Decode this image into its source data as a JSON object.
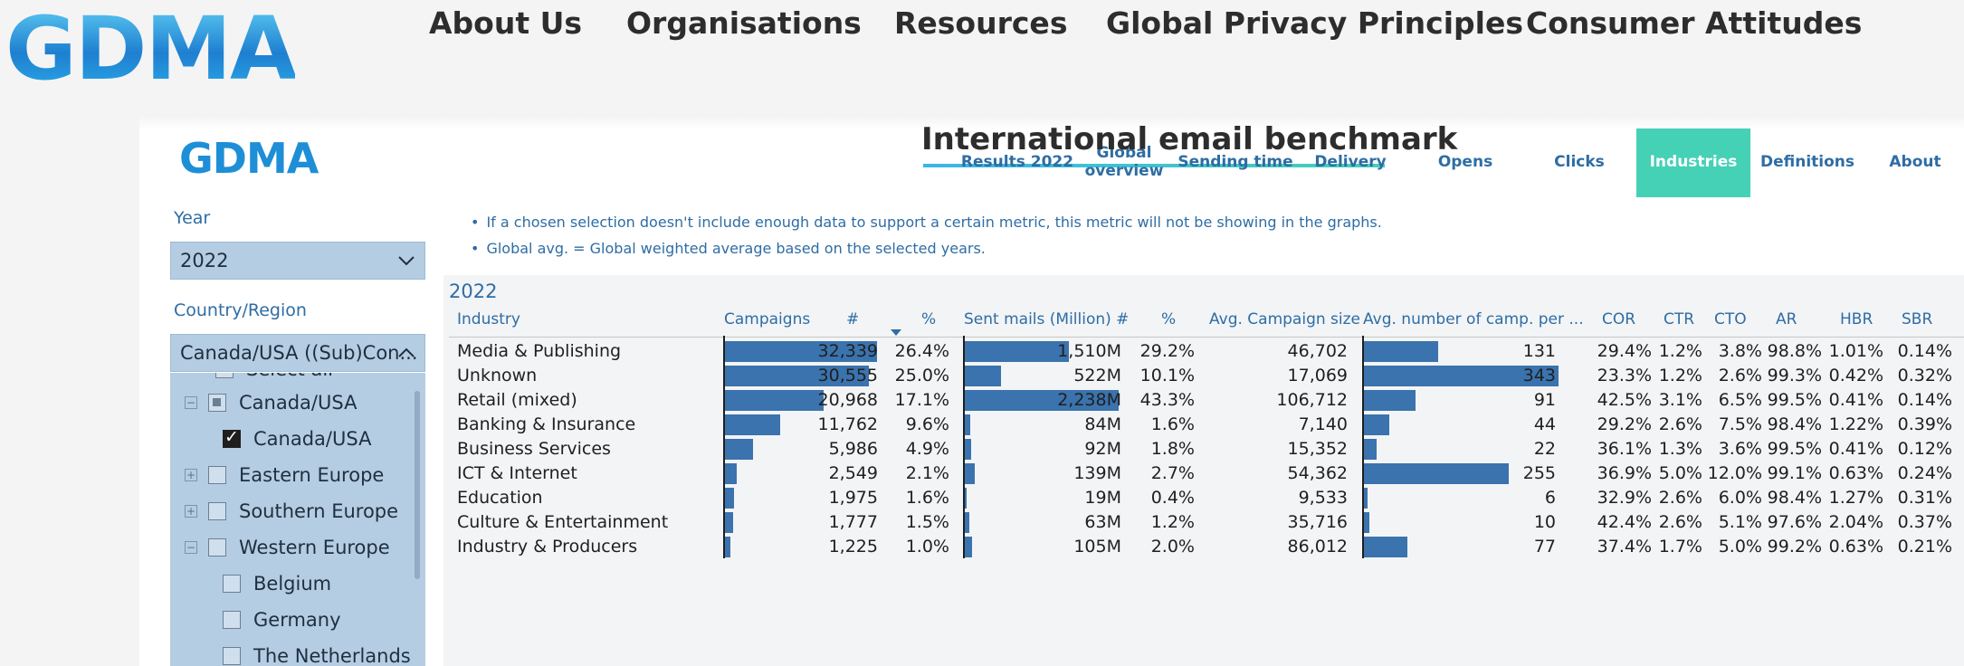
{
  "site": {
    "logo": "GDMA",
    "nav": [
      "About Us",
      "Organisations",
      "Resources",
      "Global Privacy Principles",
      "Consumer Attitudes"
    ]
  },
  "report": {
    "logo": "GDMA",
    "title": "International email benchmark",
    "tabs": [
      "Results 2022",
      "Global overview",
      "Sending time",
      "Delivery",
      "Opens",
      "Clicks",
      "Industries",
      "Definitions",
      "About"
    ],
    "active_tab": "Industries"
  },
  "filters": {
    "year_label": "Year",
    "year_value": "2022",
    "country_label": "Country/Region",
    "country_value": "Canada/USA ((Sub)Con...",
    "tree": [
      {
        "label": "Select all",
        "level": 0
      },
      {
        "label": "Canada/USA",
        "level": 0,
        "expander": "−",
        "state": "partial"
      },
      {
        "label": "Canada/USA",
        "level": 1,
        "state": "checked"
      },
      {
        "label": "Eastern Europe",
        "level": 0,
        "expander": "+",
        "state": "empty"
      },
      {
        "label": "Southern Europe",
        "level": 0,
        "expander": "+",
        "state": "empty"
      },
      {
        "label": "Western Europe",
        "level": 0,
        "expander": "−",
        "state": "empty"
      },
      {
        "label": "Belgium",
        "level": 1,
        "state": "empty"
      },
      {
        "label": "Germany",
        "level": 1,
        "state": "empty"
      },
      {
        "label": "The Netherlands",
        "level": 1,
        "state": "empty"
      }
    ]
  },
  "notes": [
    "If a chosen selection doesn't include enough data to support a certain metric, this metric will not be showing in the graphs.",
    "Global avg. = Global weighted average based on the selected years."
  ],
  "table": {
    "year": "2022",
    "headers": {
      "industry": "Industry",
      "campaigns": "Campaigns",
      "campaigns_num": "#",
      "campaigns_pct": "%",
      "sent": "Sent mails (Million) #",
      "sent_pct": "%",
      "avg_size": "Avg. Campaign size",
      "avg_camp": "Avg. number of camp. per ...",
      "cor": "COR",
      "ctr": "CTR",
      "cto": "CTO",
      "ar": "AR",
      "hbr": "HBR",
      "sbr": "SBR"
    },
    "max": {
      "campaigns": 32339,
      "sent": 2238,
      "avg_camp": 343
    },
    "rows": [
      {
        "industry": "Media & Publishing",
        "campaigns": "32,339",
        "campaigns_v": 32339,
        "campaigns_pct": "26.4%",
        "sent": "1,510M",
        "sent_v": 1510,
        "sent_pct": "29.2%",
        "avg_size": "46,702",
        "avg_camp": "131",
        "avg_camp_v": 131,
        "cor": "29.4%",
        "ctr": "1.2%",
        "cto": "3.8%",
        "ar": "98.8%",
        "hbr": "1.01%",
        "sbr": "0.14%"
      },
      {
        "industry": "Unknown",
        "campaigns": "30,555",
        "campaigns_v": 30555,
        "campaigns_pct": "25.0%",
        "sent": "522M",
        "sent_v": 522,
        "sent_pct": "10.1%",
        "avg_size": "17,069",
        "avg_camp": "343",
        "avg_camp_v": 343,
        "cor": "23.3%",
        "ctr": "1.2%",
        "cto": "2.6%",
        "ar": "99.3%",
        "hbr": "0.42%",
        "sbr": "0.32%"
      },
      {
        "industry": "Retail (mixed)",
        "campaigns": "20,968",
        "campaigns_v": 20968,
        "campaigns_pct": "17.1%",
        "sent": "2,238M",
        "sent_v": 2238,
        "sent_pct": "43.3%",
        "avg_size": "106,712",
        "avg_camp": "91",
        "avg_camp_v": 91,
        "cor": "42.5%",
        "ctr": "3.1%",
        "cto": "6.5%",
        "ar": "99.5%",
        "hbr": "0.41%",
        "sbr": "0.14%"
      },
      {
        "industry": "Banking & Insurance",
        "campaigns": "11,762",
        "campaigns_v": 11762,
        "campaigns_pct": "9.6%",
        "sent": "84M",
        "sent_v": 84,
        "sent_pct": "1.6%",
        "avg_size": "7,140",
        "avg_camp": "44",
        "avg_camp_v": 44,
        "cor": "29.2%",
        "ctr": "2.6%",
        "cto": "7.5%",
        "ar": "98.4%",
        "hbr": "1.22%",
        "sbr": "0.39%"
      },
      {
        "industry": "Business Services",
        "campaigns": "5,986",
        "campaigns_v": 5986,
        "campaigns_pct": "4.9%",
        "sent": "92M",
        "sent_v": 92,
        "sent_pct": "1.8%",
        "avg_size": "15,352",
        "avg_camp": "22",
        "avg_camp_v": 22,
        "cor": "36.1%",
        "ctr": "1.3%",
        "cto": "3.6%",
        "ar": "99.5%",
        "hbr": "0.41%",
        "sbr": "0.12%"
      },
      {
        "industry": "ICT & Internet",
        "campaigns": "2,549",
        "campaigns_v": 2549,
        "campaigns_pct": "2.1%",
        "sent": "139M",
        "sent_v": 139,
        "sent_pct": "2.7%",
        "avg_size": "54,362",
        "avg_camp": "255",
        "avg_camp_v": 255,
        "cor": "36.9%",
        "ctr": "5.0%",
        "cto": "12.0%",
        "ar": "99.1%",
        "hbr": "0.63%",
        "sbr": "0.24%"
      },
      {
        "industry": "Education",
        "campaigns": "1,975",
        "campaigns_v": 1975,
        "campaigns_pct": "1.6%",
        "sent": "19M",
        "sent_v": 19,
        "sent_pct": "0.4%",
        "avg_size": "9,533",
        "avg_camp": "6",
        "avg_camp_v": 6,
        "cor": "32.9%",
        "ctr": "2.6%",
        "cto": "6.0%",
        "ar": "98.4%",
        "hbr": "1.27%",
        "sbr": "0.31%"
      },
      {
        "industry": "Culture & Entertainment",
        "campaigns": "1,777",
        "campaigns_v": 1777,
        "campaigns_pct": "1.5%",
        "sent": "63M",
        "sent_v": 63,
        "sent_pct": "1.2%",
        "avg_size": "35,716",
        "avg_camp": "10",
        "avg_camp_v": 10,
        "cor": "42.4%",
        "ctr": "2.6%",
        "cto": "5.1%",
        "ar": "97.6%",
        "hbr": "2.04%",
        "sbr": "0.37%"
      },
      {
        "industry": "Industry & Producers",
        "campaigns": "1,225",
        "campaigns_v": 1225,
        "campaigns_pct": "1.0%",
        "sent": "105M",
        "sent_v": 105,
        "sent_pct": "2.0%",
        "avg_size": "86,012",
        "avg_camp": "77",
        "avg_camp_v": 77,
        "cor": "37.4%",
        "ctr": "1.7%",
        "cto": "5.0%",
        "ar": "99.2%",
        "hbr": "0.63%",
        "sbr": "0.21%"
      }
    ]
  },
  "colors": {
    "accent": "#45d1b6",
    "bar": "#3a73ad",
    "link": "#2e6da4",
    "slicer": "#b5cde2"
  }
}
